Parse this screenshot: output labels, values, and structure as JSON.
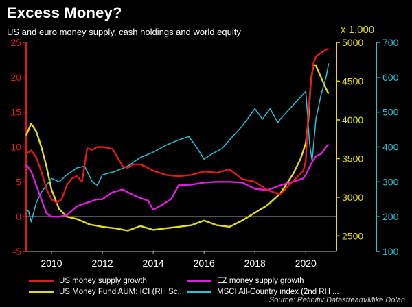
{
  "header": {
    "title": "Excess Money?",
    "subtitle": "US and euro money supply, cash holdings and world equity",
    "right_axis_unit": "x 1,000"
  },
  "source": "Source: Refinitiv Datastream/Mike Dolan",
  "legend": [
    {
      "label": "US money supply growth",
      "color": "#e01b1b"
    },
    {
      "label": "EZ money supply growth",
      "color": "#e11de0"
    },
    {
      "label": "US Money Fund AUM: ICI (RH Sc...",
      "color": "#e3de1b"
    },
    {
      "label": "MSCI All-Country index (2nd RH ...",
      "color": "#27c3d6"
    }
  ],
  "chart_data": {
    "type": "line",
    "x_ticks": [
      "2010",
      "2012",
      "2014",
      "2016",
      "2018",
      "2020"
    ],
    "x_range": [
      2009.0,
      2021.1
    ],
    "axes": {
      "left": {
        "range": [
          -5,
          25
        ],
        "ticks": [
          "-5",
          "0",
          "5",
          "10",
          "15",
          "20",
          "25"
        ],
        "color": "#e01b1b"
      },
      "right1": {
        "range": [
          2300,
          5000
        ],
        "ticks": [
          "2500",
          "3000",
          "3500",
          "4000",
          "4500",
          "5000"
        ],
        "color": "#e3de1b"
      },
      "right2": {
        "range": [
          100,
          700
        ],
        "ticks": [
          "100",
          "200",
          "300",
          "400",
          "500",
          "600",
          "700"
        ],
        "color": "#27c3d6"
      }
    },
    "zero_line": true,
    "series": [
      {
        "name": "US money supply growth",
        "axis": "left",
        "color": "#e01b1b",
        "x": [
          2009.0,
          2009.2,
          2009.4,
          2009.6,
          2009.8,
          2010.0,
          2010.2,
          2010.4,
          2010.6,
          2010.8,
          2011.0,
          2011.2,
          2011.4,
          2011.6,
          2011.8,
          2012.0,
          2012.2,
          2012.4,
          2012.6,
          2012.8,
          2013.0,
          2013.2,
          2013.5,
          2013.8,
          2014.0,
          2014.5,
          2015.0,
          2015.5,
          2016.0,
          2016.5,
          2017.0,
          2017.5,
          2018.0,
          2018.5,
          2019.0,
          2019.5,
          2019.9,
          2020.0,
          2020.1,
          2020.2,
          2020.3,
          2020.4,
          2020.6,
          2020.8,
          2020.9
        ],
        "values": [
          9,
          9.5,
          8.5,
          6.5,
          4,
          2.5,
          2.0,
          2.5,
          4.5,
          5.5,
          5.8,
          5.0,
          9.8,
          9.6,
          10.0,
          10.0,
          9.9,
          9.7,
          8.5,
          7.2,
          7.0,
          7.5,
          7.5,
          7.0,
          6.6,
          6.0,
          5.8,
          6.0,
          6.5,
          6.3,
          6.8,
          5.4,
          5.0,
          3.8,
          3.2,
          5.1,
          6.6,
          8.0,
          15.0,
          19.0,
          22.0,
          23.0,
          23.5,
          24.0,
          24.1
        ]
      },
      {
        "name": "EZ money supply growth",
        "axis": "left",
        "color": "#e11de0",
        "x": [
          2009.0,
          2009.2,
          2009.4,
          2009.6,
          2009.8,
          2010.0,
          2010.3,
          2010.6,
          2011.0,
          2011.4,
          2011.8,
          2012.0,
          2012.4,
          2012.8,
          2013.0,
          2013.4,
          2013.8,
          2014.0,
          2014.4,
          2014.7,
          2015.0,
          2015.5,
          2016.0,
          2016.5,
          2017.0,
          2017.5,
          2018.0,
          2018.5,
          2019.0,
          2019.5,
          2019.9,
          2020.0,
          2020.2,
          2020.4,
          2020.6,
          2020.8,
          2020.9
        ],
        "values": [
          7.5,
          6.5,
          4.5,
          2.5,
          0.5,
          0.0,
          0.0,
          0.2,
          1.5,
          2.0,
          2.5,
          2.5,
          3.5,
          3.9,
          3.5,
          2.8,
          2.3,
          1.0,
          1.8,
          2.5,
          4.5,
          4.6,
          4.9,
          5.0,
          5.0,
          4.9,
          4.0,
          3.8,
          4.5,
          5.0,
          5.5,
          6.0,
          7.5,
          8.7,
          9.0,
          10.0,
          10.4
        ]
      },
      {
        "name": "US Money Fund AUM: ICI (RH Sc...",
        "axis": "right1",
        "color": "#e3de1b",
        "x": [
          2009.0,
          2009.2,
          2009.4,
          2009.6,
          2009.8,
          2010.0,
          2010.3,
          2010.6,
          2011.0,
          2011.5,
          2012.0,
          2012.5,
          2013.0,
          2013.5,
          2014.0,
          2014.5,
          2015.0,
          2015.5,
          2016.0,
          2016.5,
          2017.0,
          2017.5,
          2018.0,
          2018.5,
          2019.0,
          2019.5,
          2019.8,
          2020.0,
          2020.1,
          2020.2,
          2020.3,
          2020.4,
          2020.6,
          2020.8,
          2020.9
        ],
        "values": [
          3800,
          3950,
          3850,
          3650,
          3400,
          3100,
          2850,
          2750,
          2720,
          2650,
          2620,
          2600,
          2570,
          2630,
          2580,
          2600,
          2620,
          2640,
          2700,
          2640,
          2620,
          2700,
          2800,
          2900,
          3050,
          3300,
          3500,
          3700,
          4000,
          4500,
          4700,
          4700,
          4550,
          4400,
          4340
        ]
      },
      {
        "name": "MSCI All-Country index (2nd RH ...",
        "axis": "right2",
        "color": "#27c3d6",
        "x": [
          2009.0,
          2009.1,
          2009.2,
          2009.4,
          2009.6,
          2009.8,
          2010.0,
          2010.3,
          2010.6,
          2011.0,
          2011.3,
          2011.6,
          2011.8,
          2012.0,
          2012.5,
          2013.0,
          2013.5,
          2014.0,
          2014.5,
          2015.0,
          2015.4,
          2015.7,
          2016.0,
          2016.3,
          2016.7,
          2017.0,
          2017.5,
          2018.0,
          2018.3,
          2018.6,
          2018.9,
          2019.0,
          2019.5,
          2020.0,
          2020.15,
          2020.25,
          2020.4,
          2020.6,
          2020.8,
          2020.9
        ],
        "values": [
          220,
          215,
          185,
          240,
          270,
          290,
          310,
          300,
          320,
          340,
          345,
          300,
          290,
          320,
          330,
          345,
          370,
          385,
          405,
          420,
          430,
          400,
          365,
          380,
          395,
          420,
          460,
          510,
          480,
          510,
          470,
          480,
          520,
          560,
          410,
          360,
          480,
          550,
          600,
          640
        ]
      }
    ]
  }
}
